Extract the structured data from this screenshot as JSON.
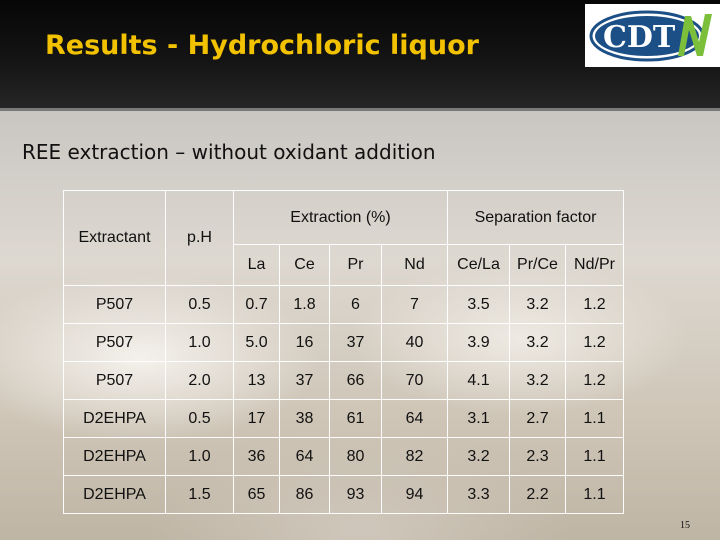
{
  "slide": {
    "title": "Results - Hydrochloric liquor",
    "logo_text": "CDTN",
    "subtitle_bold": "REE extraction – ",
    "subtitle_rest": "without  oxidant addition",
    "page_number": "15"
  },
  "table": {
    "headers": {
      "extractant": "Extractant",
      "ph": "p.H",
      "extraction_group": "Extraction (%)",
      "separation_group": "Separation factor",
      "extraction_cols": [
        "La",
        "Ce",
        "Pr",
        "Nd"
      ],
      "separation_cols": [
        "Ce/La",
        "Pr/Ce",
        "Nd/Pr"
      ]
    },
    "rows": [
      {
        "extractant": "P507",
        "ph": "0.5",
        "la": "0.7",
        "ce": "1.8",
        "pr": "6",
        "nd": "7",
        "ce_la": "3.5",
        "pr_ce": "3.2",
        "nd_pr": "1.2"
      },
      {
        "extractant": "P507",
        "ph": "1.0",
        "la": "5.0",
        "ce": "16",
        "pr": "37",
        "nd": "40",
        "ce_la": "3.9",
        "pr_ce": "3.2",
        "nd_pr": "1.2"
      },
      {
        "extractant": "P507",
        "ph": "2.0",
        "la": "13",
        "ce": "37",
        "pr": "66",
        "nd": "70",
        "ce_la": "4.1",
        "pr_ce": "3.2",
        "nd_pr": "1.2"
      },
      {
        "extractant": "D2EHPA",
        "ph": "0.5",
        "la": "17",
        "ce": "38",
        "pr": "61",
        "nd": "64",
        "ce_la": "3.1",
        "pr_ce": "2.7",
        "nd_pr": "1.1"
      },
      {
        "extractant": "D2EHPA",
        "ph": "1.0",
        "la": "36",
        "ce": "64",
        "pr": "80",
        "nd": "82",
        "ce_la": "3.2",
        "pr_ce": "2.3",
        "nd_pr": "1.1"
      },
      {
        "extractant": "D2EHPA",
        "ph": "1.5",
        "la": "65",
        "ce": "86",
        "pr": "93",
        "nd": "94",
        "ce_la": "3.3",
        "pr_ce": "2.2",
        "nd_pr": "1.1"
      }
    ]
  },
  "colors": {
    "title": "#f2c200",
    "header_bg": "#0a0a0a",
    "logo_blue": "#1c4f86",
    "logo_green": "#7bbf3a"
  }
}
